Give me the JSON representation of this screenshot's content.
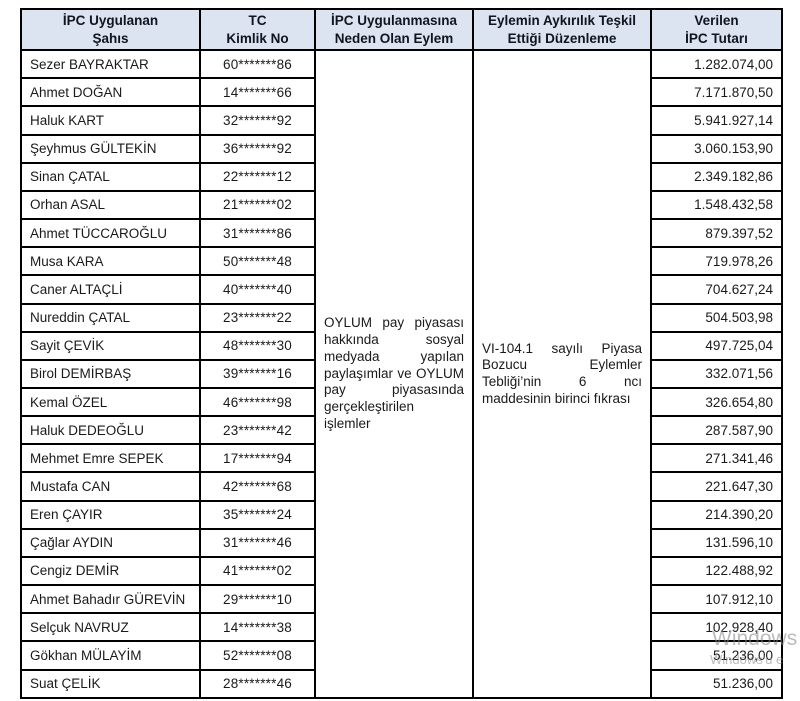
{
  "document": {
    "background": "#ffffff",
    "type_hint": "penalty-table"
  },
  "table": {
    "colors": {
      "header_bg": "#dbe4f0",
      "header_text": "#10151f",
      "body_text": "#1a1a1a",
      "border": "#000000"
    },
    "headers": [
      "İPC Uygulanan\nŞahıs",
      "TC\nKimlik No",
      "İPC Uygulanmasına\nNeden Olan Eylem",
      "Eylemin Aykırılık Teşkil\nEttiği Düzenleme",
      "Verilen\nİPC Tutarı"
    ],
    "merged_cells": {
      "action": "OYLUM pay piyasası hakkında sosyal medyada yapılan paylaşımlar ve OYLUM pay piyasasında gerçekleştirilen işlemler",
      "regulation": "VI-104.1 sayılı Piyasa Bozucu Eylemler Tebliği’nin 6 ncı maddesinin birinci fıkrası"
    },
    "rows": [
      {
        "name": "Sezer BAYRAKTAR",
        "tc_id": "60*******86",
        "amount": "1.282.074,00"
      },
      {
        "name": "Ahmet DOĞAN",
        "tc_id": "14*******66",
        "amount": "7.171.870,50"
      },
      {
        "name": "Haluk KART",
        "tc_id": "32*******92",
        "amount": "5.941.927,14"
      },
      {
        "name": "Şeyhmus GÜLTEKİN",
        "tc_id": "36*******92",
        "amount": "3.060.153,90"
      },
      {
        "name": "Sinan ÇATAL",
        "tc_id": "22*******12",
        "amount": "2.349.182,86"
      },
      {
        "name": "Orhan ASAL",
        "tc_id": "21*******02",
        "amount": "1.548.432,58"
      },
      {
        "name": "Ahmet TÜCCAROĞLU",
        "tc_id": "31*******86",
        "amount": "879.397,52"
      },
      {
        "name": "Musa KARA",
        "tc_id": "50*******48",
        "amount": "719.978,26"
      },
      {
        "name": "Caner ALTAÇLİ",
        "tc_id": "40*******40",
        "amount": "704.627,24"
      },
      {
        "name": "Nureddin ÇATAL",
        "tc_id": "23*******22",
        "amount": "504.503,98"
      },
      {
        "name": "Sayit ÇEVİK",
        "tc_id": "48*******30",
        "amount": "497.725,04"
      },
      {
        "name": "Birol DEMİRBAŞ",
        "tc_id": "39*******16",
        "amount": "332.071,56"
      },
      {
        "name": "Kemal ÖZEL",
        "tc_id": "46*******98",
        "amount": "326.654,80"
      },
      {
        "name": "Haluk DEDEOĞLU",
        "tc_id": "23*******42",
        "amount": "287.587,90"
      },
      {
        "name": "Mehmet Emre SEPEK",
        "tc_id": "17*******94",
        "amount": "271.341,46"
      },
      {
        "name": "Mustafa CAN",
        "tc_id": "42*******68",
        "amount": "221.647,30"
      },
      {
        "name": "Eren ÇAYIR",
        "tc_id": "35*******24",
        "amount": "214.390,20"
      },
      {
        "name": "Çağlar AYDIN",
        "tc_id": "31*******46",
        "amount": "131.596,10"
      },
      {
        "name": "Cengiz DEMİR",
        "tc_id": "41*******02",
        "amount": "122.488,92"
      },
      {
        "name": "Ahmet Bahadır GÜREVİN",
        "tc_id": "29*******10",
        "amount": "107.912,10"
      },
      {
        "name": "Selçuk NAVRUZ",
        "tc_id": "14*******38",
        "amount": "102.928,40"
      },
      {
        "name": "Gökhan MÜLAYİM",
        "tc_id": "52*******08",
        "amount": "51.236,00"
      },
      {
        "name": "Suat ÇELİK",
        "tc_id": "28*******46",
        "amount": "51.236,00"
      }
    ]
  },
  "watermark": {
    "line1": "Windows",
    "line2": "Windows'u e"
  }
}
